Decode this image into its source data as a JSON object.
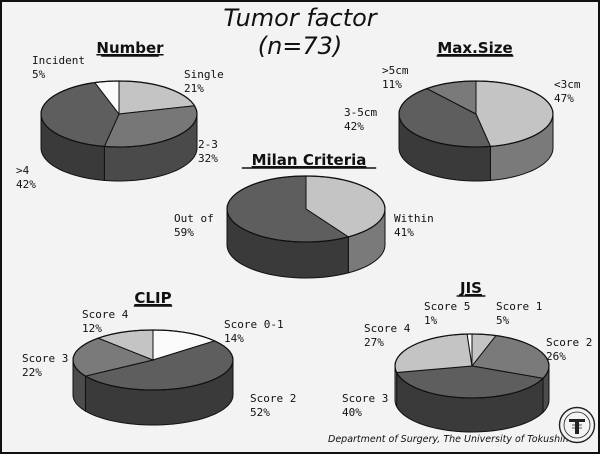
{
  "header": {
    "title": "Tumor factor",
    "subtitle": "(n=73)"
  },
  "footer": {
    "credit": "Department of Surgery, The University of Tokushima"
  },
  "colors": {
    "dark": "#5c5c5c",
    "mid": "#8a8a8a",
    "light": "#c4c4c4",
    "white": "#fafafa"
  },
  "chart_data": [
    {
      "type": "pie",
      "title": "Number",
      "slices": [
        {
          "label": "Single",
          "value": 21,
          "value_label": "21%",
          "color": "#c4c4c4"
        },
        {
          "label": "2-3",
          "value": 32,
          "value_label": "32%",
          "color": "#777777"
        },
        {
          "label": ">4",
          "value": 42,
          "value_label": "42%",
          "color": "#5e5e5e"
        },
        {
          "label": "Incident",
          "value": 5,
          "value_label": "5%",
          "color": "#fafafa"
        }
      ]
    },
    {
      "type": "pie",
      "title": "Max.Size",
      "slices": [
        {
          "label": "<3cm",
          "value": 47,
          "value_label": "47%",
          "color": "#c4c4c4"
        },
        {
          "label": "3-5cm",
          "value": 42,
          "value_label": "42%",
          "color": "#5e5e5e"
        },
        {
          "label": ">5cm",
          "value": 11,
          "value_label": "11%",
          "color": "#7a7a7a"
        }
      ]
    },
    {
      "type": "pie",
      "title": "Milan Criteria",
      "slices": [
        {
          "label": "Within",
          "value": 41,
          "value_label": "41%",
          "color": "#c4c4c4"
        },
        {
          "label": "Out of",
          "value": 59,
          "value_label": "59%",
          "color": "#5e5e5e"
        }
      ]
    },
    {
      "type": "pie",
      "title": "CLIP",
      "slices": [
        {
          "label": "Score 0-1",
          "value": 14,
          "value_label": "14%",
          "color": "#fafafa"
        },
        {
          "label": "Score 2",
          "value": 52,
          "value_label": "52%",
          "color": "#5e5e5e"
        },
        {
          "label": "Score 3",
          "value": 22,
          "value_label": "22%",
          "color": "#7a7a7a"
        },
        {
          "label": "Score 4",
          "value": 12,
          "value_label": "12%",
          "color": "#c4c4c4"
        }
      ]
    },
    {
      "type": "pie",
      "title": "JIS",
      "slices": [
        {
          "label": "Score 1",
          "value": 5,
          "value_label": "5%",
          "color": "#c4c4c4"
        },
        {
          "label": "Score 2",
          "value": 26,
          "value_label": "26%",
          "color": "#7a7a7a"
        },
        {
          "label": "Score 3",
          "value": 40,
          "value_label": "40%",
          "color": "#5e5e5e"
        },
        {
          "label": "Score 4",
          "value": 27,
          "value_label": "27%",
          "color": "#c4c4c4"
        },
        {
          "label": "Score 5",
          "value": 1,
          "value_label": "1%",
          "color": "#fafafa"
        }
      ]
    }
  ]
}
